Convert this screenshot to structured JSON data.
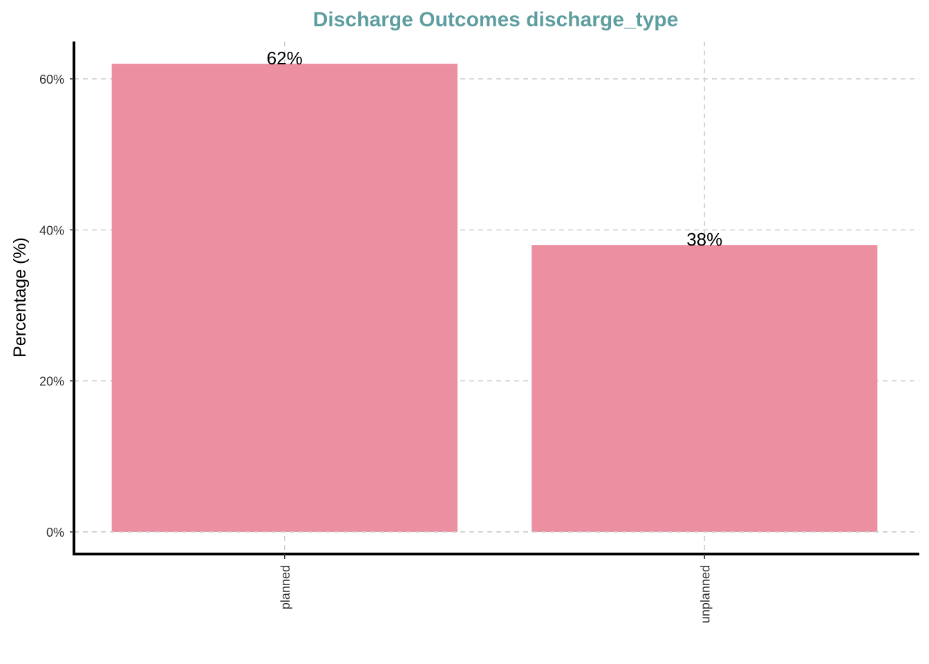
{
  "chart_data": {
    "type": "bar",
    "title": "Discharge Outcomes discharge_type",
    "xlabel": "",
    "ylabel": "Percentage (%)",
    "categories": [
      "planned",
      "unplanned"
    ],
    "values": [
      62,
      38
    ],
    "data_labels": [
      "62%",
      "38%"
    ],
    "yticks": [
      0,
      20,
      40,
      60
    ],
    "ytick_labels": [
      "0%",
      "20%",
      "40%",
      "60%"
    ],
    "ylim": [
      -3,
      65
    ],
    "grid": true,
    "legend": "none",
    "bar_color": "#ec8fa0",
    "title_color": "#5f9ea0"
  }
}
